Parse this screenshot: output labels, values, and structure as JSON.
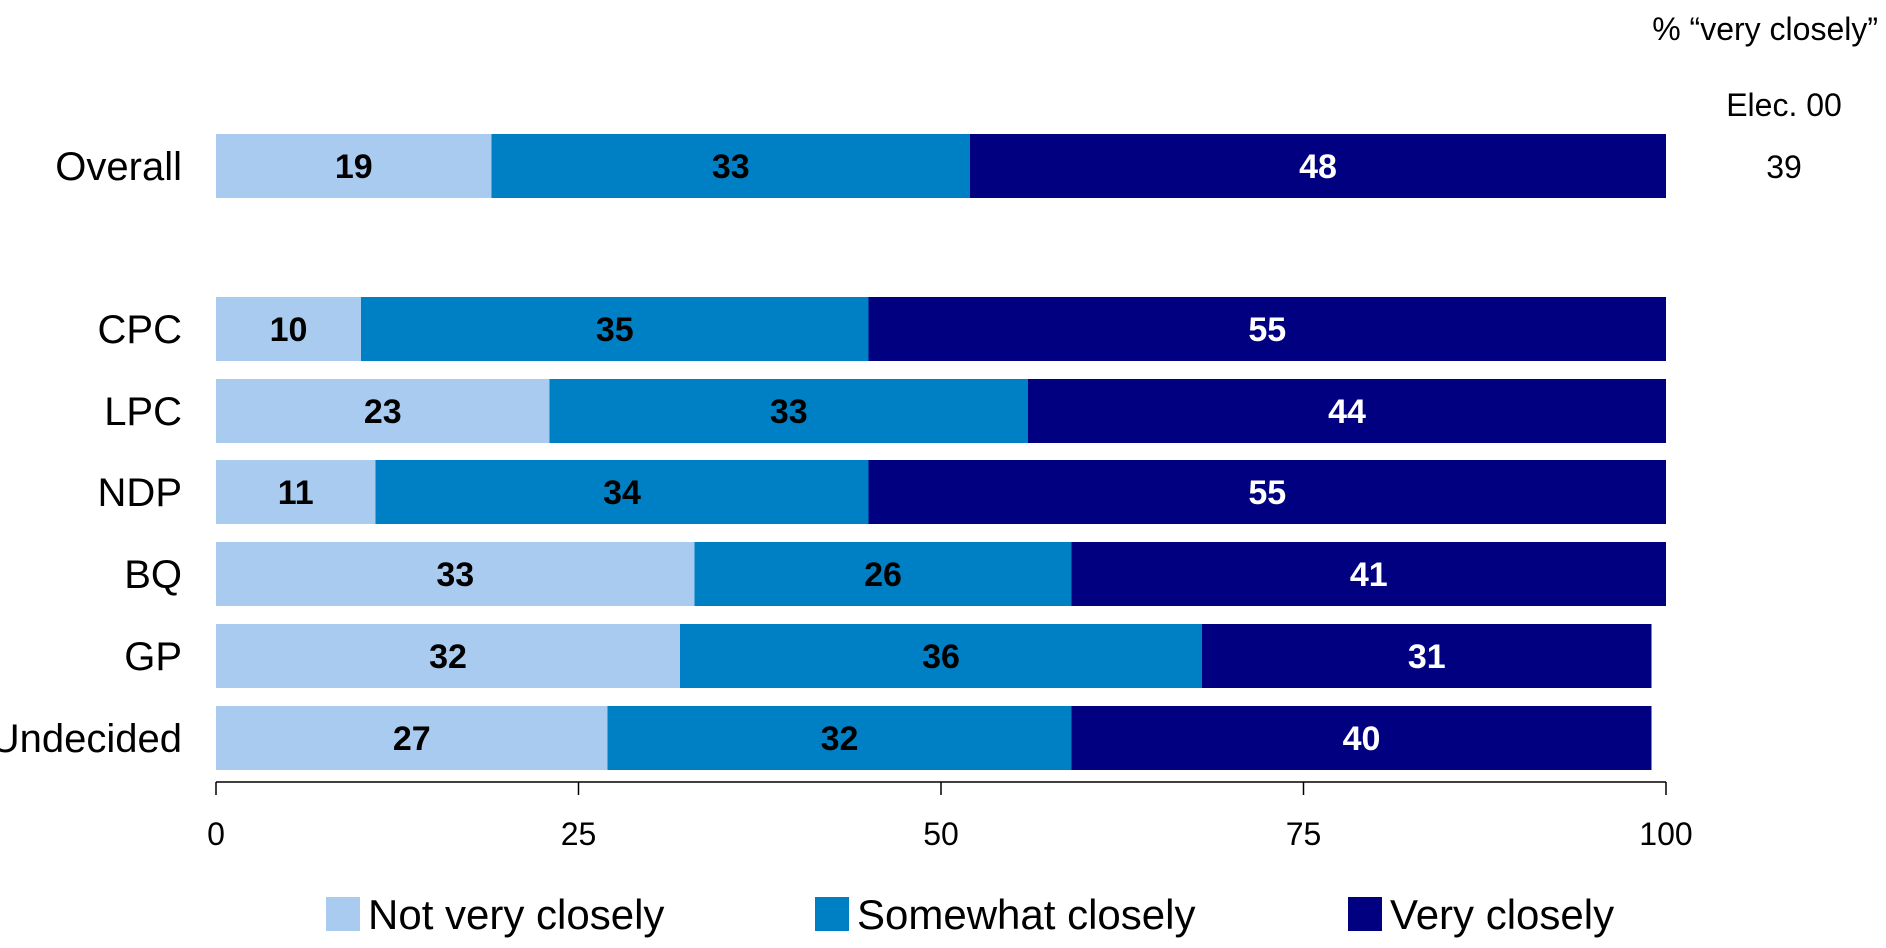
{
  "chart_data": {
    "type": "bar",
    "orientation": "horizontal",
    "stacked": true,
    "categories": [
      "Overall",
      "CPC",
      "LPC",
      "NDP",
      "BQ",
      "GP",
      "Undecided"
    ],
    "series": [
      {
        "name": "Not very closely",
        "color": "#a9cbf0",
        "label_color": "#000000",
        "values": [
          19,
          10,
          23,
          11,
          33,
          32,
          27
        ]
      },
      {
        "name": "Somewhat closely",
        "color": "#0080c4",
        "label_color": "#000000",
        "values": [
          33,
          35,
          33,
          34,
          26,
          36,
          32
        ]
      },
      {
        "name": "Very closely",
        "color": "#000080",
        "label_color": "#ffffff",
        "values": [
          48,
          55,
          44,
          55,
          41,
          31,
          40
        ]
      }
    ],
    "xlim": [
      0,
      100
    ],
    "xticks": [
      0,
      25,
      50,
      75,
      100
    ],
    "legend_position": "bottom",
    "side_column": {
      "header": "% “very closely”",
      "subheader": "Elec. 00",
      "values": [
        "39"
      ]
    }
  }
}
